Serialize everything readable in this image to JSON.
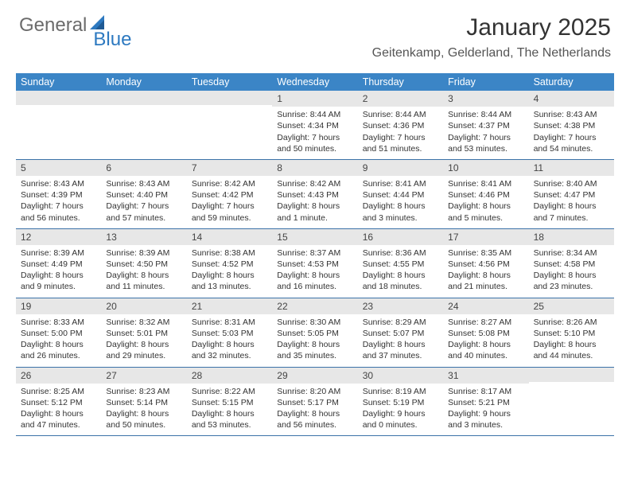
{
  "brand": {
    "part1": "General",
    "part2": "Blue"
  },
  "title": "January 2025",
  "location": "Geitenkamp, Gelderland, The Netherlands",
  "colors": {
    "header_bg": "#3b85c6",
    "row_stripe": "#e7e7e7",
    "border": "#3b72a8",
    "brand_gray": "#6b6b6b",
    "brand_blue": "#2d79c0"
  },
  "day_headers": [
    "Sunday",
    "Monday",
    "Tuesday",
    "Wednesday",
    "Thursday",
    "Friday",
    "Saturday"
  ],
  "leading_blanks": 3,
  "days": [
    {
      "n": "1",
      "sunrise": "8:44 AM",
      "sunset": "4:34 PM",
      "daylight": "7 hours and 50 minutes."
    },
    {
      "n": "2",
      "sunrise": "8:44 AM",
      "sunset": "4:36 PM",
      "daylight": "7 hours and 51 minutes."
    },
    {
      "n": "3",
      "sunrise": "8:44 AM",
      "sunset": "4:37 PM",
      "daylight": "7 hours and 53 minutes."
    },
    {
      "n": "4",
      "sunrise": "8:43 AM",
      "sunset": "4:38 PM",
      "daylight": "7 hours and 54 minutes."
    },
    {
      "n": "5",
      "sunrise": "8:43 AM",
      "sunset": "4:39 PM",
      "daylight": "7 hours and 56 minutes."
    },
    {
      "n": "6",
      "sunrise": "8:43 AM",
      "sunset": "4:40 PM",
      "daylight": "7 hours and 57 minutes."
    },
    {
      "n": "7",
      "sunrise": "8:42 AM",
      "sunset": "4:42 PM",
      "daylight": "7 hours and 59 minutes."
    },
    {
      "n": "8",
      "sunrise": "8:42 AM",
      "sunset": "4:43 PM",
      "daylight": "8 hours and 1 minute."
    },
    {
      "n": "9",
      "sunrise": "8:41 AM",
      "sunset": "4:44 PM",
      "daylight": "8 hours and 3 minutes."
    },
    {
      "n": "10",
      "sunrise": "8:41 AM",
      "sunset": "4:46 PM",
      "daylight": "8 hours and 5 minutes."
    },
    {
      "n": "11",
      "sunrise": "8:40 AM",
      "sunset": "4:47 PM",
      "daylight": "8 hours and 7 minutes."
    },
    {
      "n": "12",
      "sunrise": "8:39 AM",
      "sunset": "4:49 PM",
      "daylight": "8 hours and 9 minutes."
    },
    {
      "n": "13",
      "sunrise": "8:39 AM",
      "sunset": "4:50 PM",
      "daylight": "8 hours and 11 minutes."
    },
    {
      "n": "14",
      "sunrise": "8:38 AM",
      "sunset": "4:52 PM",
      "daylight": "8 hours and 13 minutes."
    },
    {
      "n": "15",
      "sunrise": "8:37 AM",
      "sunset": "4:53 PM",
      "daylight": "8 hours and 16 minutes."
    },
    {
      "n": "16",
      "sunrise": "8:36 AM",
      "sunset": "4:55 PM",
      "daylight": "8 hours and 18 minutes."
    },
    {
      "n": "17",
      "sunrise": "8:35 AM",
      "sunset": "4:56 PM",
      "daylight": "8 hours and 21 minutes."
    },
    {
      "n": "18",
      "sunrise": "8:34 AM",
      "sunset": "4:58 PM",
      "daylight": "8 hours and 23 minutes."
    },
    {
      "n": "19",
      "sunrise": "8:33 AM",
      "sunset": "5:00 PM",
      "daylight": "8 hours and 26 minutes."
    },
    {
      "n": "20",
      "sunrise": "8:32 AM",
      "sunset": "5:01 PM",
      "daylight": "8 hours and 29 minutes."
    },
    {
      "n": "21",
      "sunrise": "8:31 AM",
      "sunset": "5:03 PM",
      "daylight": "8 hours and 32 minutes."
    },
    {
      "n": "22",
      "sunrise": "8:30 AM",
      "sunset": "5:05 PM",
      "daylight": "8 hours and 35 minutes."
    },
    {
      "n": "23",
      "sunrise": "8:29 AM",
      "sunset": "5:07 PM",
      "daylight": "8 hours and 37 minutes."
    },
    {
      "n": "24",
      "sunrise": "8:27 AM",
      "sunset": "5:08 PM",
      "daylight": "8 hours and 40 minutes."
    },
    {
      "n": "25",
      "sunrise": "8:26 AM",
      "sunset": "5:10 PM",
      "daylight": "8 hours and 44 minutes."
    },
    {
      "n": "26",
      "sunrise": "8:25 AM",
      "sunset": "5:12 PM",
      "daylight": "8 hours and 47 minutes."
    },
    {
      "n": "27",
      "sunrise": "8:23 AM",
      "sunset": "5:14 PM",
      "daylight": "8 hours and 50 minutes."
    },
    {
      "n": "28",
      "sunrise": "8:22 AM",
      "sunset": "5:15 PM",
      "daylight": "8 hours and 53 minutes."
    },
    {
      "n": "29",
      "sunrise": "8:20 AM",
      "sunset": "5:17 PM",
      "daylight": "8 hours and 56 minutes."
    },
    {
      "n": "30",
      "sunrise": "8:19 AM",
      "sunset": "5:19 PM",
      "daylight": "9 hours and 0 minutes."
    },
    {
      "n": "31",
      "sunrise": "8:17 AM",
      "sunset": "5:21 PM",
      "daylight": "9 hours and 3 minutes."
    }
  ],
  "labels": {
    "sunrise": "Sunrise:",
    "sunset": "Sunset:",
    "daylight": "Daylight:"
  }
}
